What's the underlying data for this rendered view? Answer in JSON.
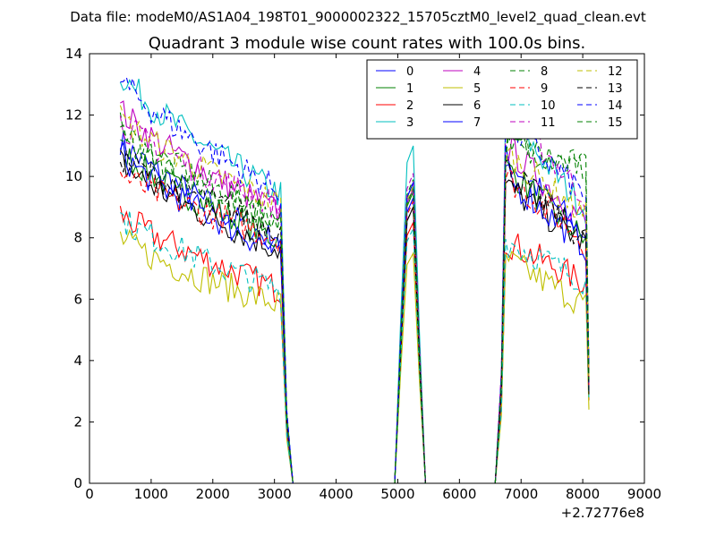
{
  "header": {
    "file_label": "Data file: modeM0/AS1A04_198T01_9000002322_15705cztM0_level2_quad_clean.evt"
  },
  "chart_data": {
    "type": "line",
    "title": "Quadrant 3 module wise count rates with 100.0s bins.",
    "xlabel": "",
    "ylabel": "",
    "x_offset_label": "+2.72776e8",
    "xlim": [
      0,
      9000
    ],
    "ylim": [
      0,
      14
    ],
    "x_ticks": [
      0,
      1000,
      2000,
      3000,
      4000,
      5000,
      6000,
      7000,
      8000,
      9000
    ],
    "y_ticks": [
      0,
      2,
      4,
      6,
      8,
      10,
      12,
      14
    ],
    "x_tick_labels": [
      "0",
      "1000",
      "2000",
      "3000",
      "4000",
      "5000",
      "6000",
      "7000",
      "8000",
      "9000"
    ],
    "y_tick_labels": [
      "0",
      "2",
      "4",
      "6",
      "8",
      "10",
      "12",
      "14"
    ],
    "grid": false,
    "legend_position": "top-right",
    "legend_columns": 4,
    "segments": [
      {
        "x_start": 500,
        "x_end": 3100,
        "kind": "data"
      },
      {
        "x_values": [
          3200,
          3300
        ],
        "kind": "falloff"
      },
      {
        "x_values": [
          3300,
          4950
        ],
        "kind": "zero"
      },
      {
        "x_values": [
          4950,
          5050,
          5150,
          5250,
          5350,
          5450
        ],
        "kind": "spike"
      },
      {
        "x_values": [
          5450,
          6580
        ],
        "kind": "zero"
      },
      {
        "x_start": 6580,
        "x_end": 8100,
        "kind": "data"
      }
    ],
    "series": [
      {
        "name": "0",
        "color": "#0000ff",
        "dash": "solid",
        "start": 11.2,
        "end": 7.8,
        "spike": 9.8,
        "p3": 10.6,
        "p3end": 8.1,
        "final": 3.3
      },
      {
        "name": "1",
        "color": "#008000",
        "dash": "solid",
        "start": 10.9,
        "end": 7.9,
        "spike": 9.5,
        "p3": 10.3,
        "p3end": 7.9,
        "final": 3.1
      },
      {
        "name": "2",
        "color": "#ff0000",
        "dash": "solid",
        "start": 8.8,
        "end": 6.3,
        "spike": 8.5,
        "p3": 7.9,
        "p3end": 6.5,
        "final": 2.7
      },
      {
        "name": "3",
        "color": "#00bfbf",
        "dash": "solid",
        "start": 13.4,
        "end": 9.4,
        "spike": 11.0,
        "p3": 12.0,
        "p3end": 8.9,
        "final": 3.8
      },
      {
        "name": "4",
        "color": "#bf00bf",
        "dash": "solid",
        "start": 12.2,
        "end": 8.8,
        "spike": 9.6,
        "p3": 11.0,
        "p3end": 8.5,
        "final": 3.4
      },
      {
        "name": "5",
        "color": "#bfbf00",
        "dash": "solid",
        "start": 8.0,
        "end": 5.8,
        "spike": 7.5,
        "p3": 7.3,
        "p3end": 5.8,
        "final": 2.4
      },
      {
        "name": "6",
        "color": "#000000",
        "dash": "solid",
        "start": 10.5,
        "end": 7.6,
        "spike": 9.0,
        "p3": 9.7,
        "p3end": 7.8,
        "final": 2.9
      },
      {
        "name": "7",
        "color": "#0000ff",
        "dash": "solid",
        "start": 10.8,
        "end": 7.5,
        "spike": 9.3,
        "p3": 10.0,
        "p3end": 7.7,
        "final": 3.0
      },
      {
        "name": "8",
        "color": "#008000",
        "dash": "dashed",
        "start": 11.6,
        "end": 8.6,
        "spike": 9.9,
        "p3": 11.2,
        "p3end": 10.2,
        "final": 3.6
      },
      {
        "name": "9",
        "color": "#ff0000",
        "dash": "dashed",
        "start": 10.1,
        "end": 8.0,
        "spike": 9.2,
        "p3": 10.0,
        "p3end": 7.9,
        "final": 3.2
      },
      {
        "name": "10",
        "color": "#00bfbf",
        "dash": "dashed",
        "start": 8.7,
        "end": 6.3,
        "spike": 8.3,
        "p3": 7.9,
        "p3end": 6.6,
        "final": 2.8
      },
      {
        "name": "11",
        "color": "#bf00bf",
        "dash": "dashed",
        "start": 11.8,
        "end": 9.0,
        "spike": 10.1,
        "p3": 12.3,
        "p3end": 9.3,
        "final": 3.7
      },
      {
        "name": "12",
        "color": "#bfbf00",
        "dash": "dashed",
        "start": 11.9,
        "end": 9.1,
        "spike": 9.7,
        "p3": 10.8,
        "p3end": 8.7,
        "final": 3.5
      },
      {
        "name": "13",
        "color": "#000000",
        "dash": "dashed",
        "start": 10.7,
        "end": 8.3,
        "spike": 9.0,
        "p3": 10.3,
        "p3end": 7.9,
        "final": 2.9
      },
      {
        "name": "14",
        "color": "#0000ff",
        "dash": "dashed",
        "start": 13.2,
        "end": 9.5,
        "spike": 9.8,
        "p3": 11.7,
        "p3end": 9.4,
        "final": 3.9
      },
      {
        "name": "15",
        "color": "#008000",
        "dash": "dashed",
        "start": 11.3,
        "end": 8.5,
        "spike": 9.6,
        "p3": 11.0,
        "p3end": 10.3,
        "final": 3.4
      }
    ]
  }
}
